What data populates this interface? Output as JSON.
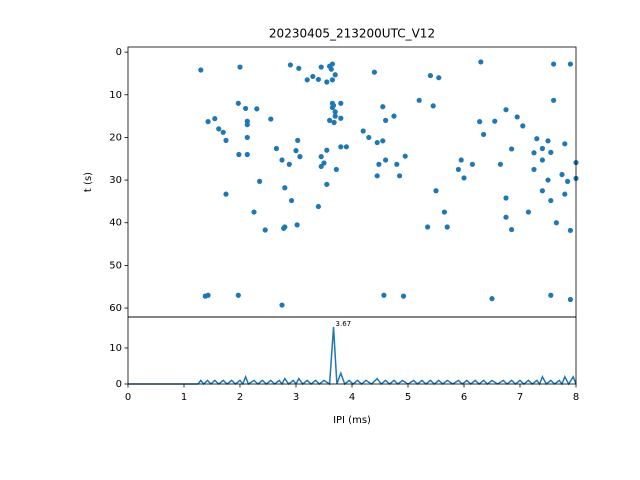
{
  "chart_data": [
    {
      "type": "scatter",
      "title": "20230405_213200UTC_V12",
      "y_label": "t (s)",
      "color": "#1f77b4",
      "ylim": [
        62.1,
        -1.2
      ],
      "yticks": [
        0,
        10,
        20,
        30,
        40,
        50,
        60
      ],
      "xlim": [
        0,
        8
      ],
      "x": [
        1.3,
        1.43,
        1.55,
        1.62,
        1.7,
        1.75,
        1.75,
        1.38,
        1.43,
        2.0,
        1.97,
        2.1,
        2.13,
        2.13,
        2.13,
        1.98,
        2.13,
        2.3,
        2.35,
        2.25,
        2.45,
        2.55,
        1.97,
        2.9,
        3.05,
        3.2,
        3.3,
        3.4,
        3.45,
        3.6,
        3.65,
        3.63,
        3.7,
        3.65,
        3.55,
        3.65,
        3.67,
        3.65,
        3.7,
        3.7,
        3.8,
        3.8,
        3.8,
        3.9,
        3.6,
        3.68,
        3.72,
        3.55,
        3.45,
        3.5,
        3.45,
        3.55,
        3.4,
        3.03,
        3.07,
        2.65,
        2.75,
        2.8,
        2.88,
        2.92,
        3.0,
        3.02,
        2.78,
        2.8,
        2.75,
        4.2,
        4.3,
        4.45,
        4.4,
        4.55,
        4.6,
        4.45,
        4.48,
        4.55,
        4.6,
        4.8,
        4.85,
        4.95,
        4.75,
        4.57,
        4.92,
        5.2,
        5.4,
        5.45,
        5.55,
        5.35,
        5.5,
        5.65,
        5.7,
        5.9,
        5.95,
        6.0,
        6.15,
        6.3,
        6.28,
        6.35,
        6.55,
        6.65,
        6.75,
        6.75,
        6.85,
        6.85,
        6.75,
        6.95,
        7.05,
        7.15,
        7.25,
        7.25,
        7.3,
        7.4,
        7.4,
        7.4,
        7.5,
        7.55,
        7.5,
        7.55,
        7.55,
        7.6,
        7.6,
        7.65,
        7.75,
        7.8,
        7.8,
        7.85,
        7.9,
        7.9,
        7.9,
        8.0,
        8.0,
        6.5
      ],
      "values": [
        4.2,
        16.3,
        15.6,
        18,
        18.8,
        20.7,
        33.3,
        57.2,
        57,
        3.5,
        12,
        13.2,
        16.2,
        17,
        20,
        24,
        24,
        13.3,
        30.3,
        37.5,
        41.7,
        15.7,
        57,
        3,
        3.8,
        6.5,
        5.7,
        6.4,
        3.5,
        3.3,
        2.8,
        4,
        5.3,
        6.5,
        7,
        12,
        12.5,
        13,
        14,
        15,
        12,
        15.5,
        22.2,
        22.2,
        16,
        16.5,
        27.5,
        31,
        24.5,
        26,
        26.8,
        23,
        36.2,
        20.7,
        24.5,
        22.6,
        25.3,
        31.8,
        26.3,
        34.8,
        23.1,
        40.5,
        41.3,
        41,
        59.3,
        18.5,
        20,
        21.2,
        4.7,
        12.8,
        16,
        29,
        26.3,
        20.8,
        25.3,
        26.3,
        29,
        24.4,
        15,
        57,
        57.2,
        11.3,
        5.5,
        12.6,
        6,
        41,
        32.5,
        37.5,
        41,
        27.5,
        25.3,
        29.5,
        26.3,
        2.3,
        16.3,
        19.3,
        16.2,
        26.3,
        34.2,
        38.7,
        22.7,
        41.6,
        13.5,
        15.2,
        17.3,
        37.5,
        23.6,
        27.5,
        20.3,
        22.6,
        32.5,
        25.3,
        20.8,
        23.5,
        30,
        34.8,
        57,
        2.8,
        11.3,
        40,
        28.7,
        21.5,
        33.3,
        30.3,
        2.8,
        41.8,
        58,
        25.9,
        29.6,
        57.8
      ]
    },
    {
      "type": "line",
      "x_label": "IPI (ms)",
      "color": "#1f77b4",
      "annotation": "3.67",
      "xlim": [
        0,
        8
      ],
      "xticks": [
        0,
        1,
        2,
        3,
        4,
        5,
        6,
        7,
        8
      ],
      "ylim": [
        0,
        18.6
      ],
      "yticks": [
        0,
        10
      ],
      "x": [
        0,
        1.25,
        1.3,
        1.35,
        1.42,
        1.48,
        1.55,
        1.62,
        1.7,
        1.77,
        1.85,
        1.92,
        2.0,
        2.05,
        2.1,
        2.15,
        2.25,
        2.32,
        2.4,
        2.47,
        2.55,
        2.62,
        2.7,
        2.75,
        2.8,
        2.87,
        2.95,
        3.0,
        3.05,
        3.12,
        3.2,
        3.27,
        3.35,
        3.42,
        3.5,
        3.6,
        3.67,
        3.73,
        3.8,
        3.87,
        3.95,
        4.02,
        4.1,
        4.17,
        4.25,
        4.35,
        4.45,
        4.52,
        4.6,
        4.67,
        4.75,
        4.82,
        4.9,
        5.0,
        5.1,
        5.17,
        5.25,
        5.32,
        5.4,
        5.47,
        5.55,
        5.62,
        5.7,
        5.8,
        5.9,
        5.97,
        6.05,
        6.12,
        6.2,
        6.27,
        6.35,
        6.42,
        6.5,
        6.6,
        6.7,
        6.77,
        6.85,
        6.92,
        7.0,
        7.07,
        7.15,
        7.22,
        7.3,
        7.35,
        7.4,
        7.47,
        7.55,
        7.62,
        7.7,
        7.75,
        7.8,
        7.87,
        7.95,
        8
      ],
      "values": [
        0,
        0,
        1,
        0,
        1,
        0,
        1,
        0,
        1,
        0,
        1,
        0,
        1,
        0,
        2,
        0,
        1,
        0,
        1,
        0,
        1,
        0,
        1,
        0,
        1.5,
        0,
        1,
        0,
        1.5,
        0,
        1,
        0,
        1,
        0,
        1,
        0,
        15.8,
        0,
        3,
        0,
        1,
        0,
        1,
        0,
        1,
        0,
        1.5,
        0,
        1,
        0,
        1,
        0,
        1,
        0,
        1,
        0,
        1,
        0,
        1,
        0,
        1,
        0,
        1,
        0,
        1,
        0,
        1,
        0,
        1,
        0,
        1,
        0,
        1,
        0,
        1,
        0,
        1,
        0,
        1,
        0,
        1,
        0,
        1,
        0,
        2,
        0,
        1,
        0,
        1,
        0,
        2,
        0,
        2,
        0
      ]
    }
  ]
}
